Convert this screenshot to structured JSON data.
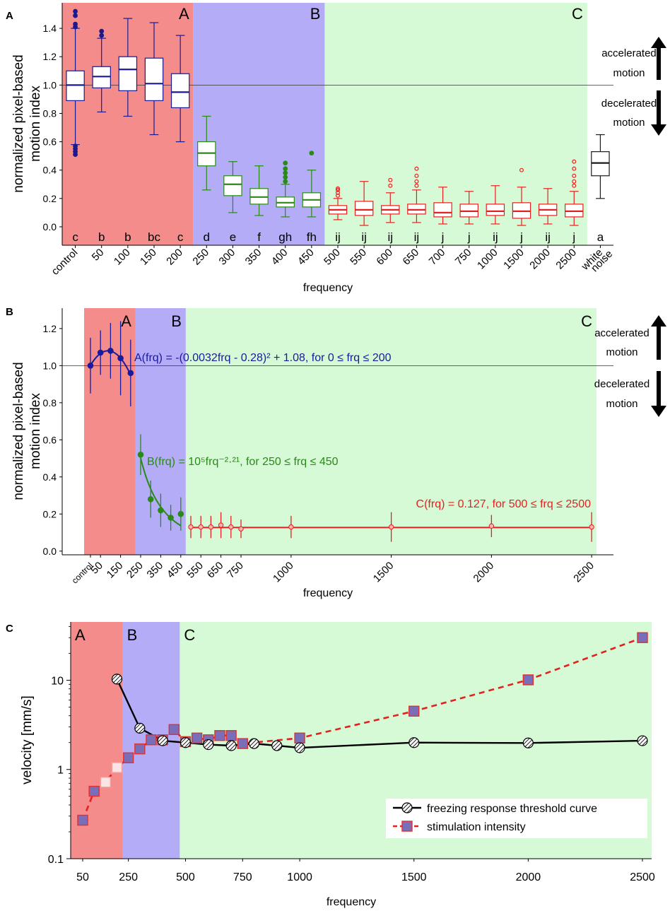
{
  "panels": [
    {
      "label": "A"
    },
    {
      "label": "B"
    },
    {
      "label": "C"
    }
  ],
  "chart_data": [
    {
      "type": "box",
      "panel": "A",
      "xlabel": "frequency",
      "ylabel_lines": [
        "normalized pixel-based",
        "motion index"
      ],
      "ylim": [
        -0.13,
        1.58
      ],
      "yticks": [
        "0.0",
        "0.2",
        "0.4",
        "0.6",
        "0.8",
        "1.0",
        "1.2",
        "1.4"
      ],
      "reference_line": 1.0,
      "regions": [
        {
          "name": "A",
          "color": "#f58c8c",
          "from_index": 0,
          "to_index": 4
        },
        {
          "name": "B",
          "color": "#b4acf7",
          "from_index": 5,
          "to_index": 9
        },
        {
          "name": "C",
          "color": "#d6fad6",
          "from_index": 10,
          "to_index": 19
        }
      ],
      "categories": [
        "control",
        "50",
        "100",
        "150",
        "200",
        "250",
        "300",
        "350",
        "400",
        "450",
        "500",
        "550",
        "600",
        "650",
        "700",
        "750",
        "1000",
        "1500",
        "2000",
        "2500",
        "white noise"
      ],
      "boxes": [
        {
          "q1": 0.89,
          "median": 1.0,
          "q3": 1.1,
          "lo": 0.58,
          "hi": 1.4,
          "outliers": [
            0.51,
            0.53,
            0.55,
            0.57,
            1.41,
            1.43,
            1.49,
            1.52
          ],
          "letters": "c",
          "color": "#1a1a8c"
        },
        {
          "q1": 0.98,
          "median": 1.06,
          "q3": 1.13,
          "lo": 0.81,
          "hi": 1.33,
          "outliers": [
            1.35,
            1.38
          ],
          "letters": "b",
          "color": "#1a1a8c"
        },
        {
          "q1": 0.96,
          "median": 1.11,
          "q3": 1.2,
          "lo": 0.78,
          "hi": 1.47,
          "outliers": [],
          "letters": "b",
          "color": "#1a1a8c"
        },
        {
          "q1": 0.89,
          "median": 1.01,
          "q3": 1.19,
          "lo": 0.65,
          "hi": 1.44,
          "outliers": [],
          "letters": "bc",
          "color": "#1a1a8c"
        },
        {
          "q1": 0.84,
          "median": 0.95,
          "q3": 1.08,
          "lo": 0.6,
          "hi": 1.35,
          "outliers": [],
          "letters": "c",
          "color": "#1a1a8c"
        },
        {
          "q1": 0.43,
          "median": 0.52,
          "q3": 0.6,
          "lo": 0.26,
          "hi": 0.78,
          "outliers": [],
          "letters": "d",
          "color": "#2a8a17"
        },
        {
          "q1": 0.22,
          "median": 0.3,
          "q3": 0.36,
          "lo": 0.1,
          "hi": 0.46,
          "outliers": [],
          "letters": "e",
          "color": "#2a8a17"
        },
        {
          "q1": 0.16,
          "median": 0.21,
          "q3": 0.27,
          "lo": 0.08,
          "hi": 0.43,
          "outliers": [],
          "letters": "f",
          "color": "#2a8a17"
        },
        {
          "q1": 0.14,
          "median": 0.17,
          "q3": 0.21,
          "lo": 0.07,
          "hi": 0.3,
          "outliers": [
            0.32,
            0.35,
            0.38,
            0.41,
            0.45
          ],
          "letters": "gh",
          "color": "#2a8a17"
        },
        {
          "q1": 0.14,
          "median": 0.19,
          "q3": 0.24,
          "lo": 0.07,
          "hi": 0.4,
          "outliers": [
            0.52
          ],
          "letters": "fh",
          "color": "#2a8a17"
        },
        {
          "q1": 0.09,
          "median": 0.12,
          "q3": 0.15,
          "lo": 0.05,
          "hi": 0.2,
          "outliers": [
            0.22,
            0.24,
            0.26,
            0.27
          ],
          "letters": "ij",
          "color": "#e52020"
        },
        {
          "q1": 0.08,
          "median": 0.12,
          "q3": 0.18,
          "lo": 0.01,
          "hi": 0.32,
          "outliers": [],
          "letters": "ij",
          "color": "#e52020"
        },
        {
          "q1": 0.09,
          "median": 0.12,
          "q3": 0.15,
          "lo": 0.03,
          "hi": 0.24,
          "outliers": [
            0.29,
            0.33
          ],
          "letters": "ij",
          "color": "#e52020"
        },
        {
          "q1": 0.09,
          "median": 0.12,
          "q3": 0.16,
          "lo": 0.03,
          "hi": 0.26,
          "outliers": [
            0.29,
            0.32,
            0.36,
            0.41
          ],
          "letters": "ij",
          "color": "#e52020"
        },
        {
          "q1": 0.07,
          "median": 0.1,
          "q3": 0.17,
          "lo": 0.02,
          "hi": 0.28,
          "outliers": [],
          "letters": "j",
          "color": "#e52020"
        },
        {
          "q1": 0.07,
          "median": 0.11,
          "q3": 0.16,
          "lo": 0.02,
          "hi": 0.25,
          "outliers": [],
          "letters": "j",
          "color": "#e52020"
        },
        {
          "q1": 0.08,
          "median": 0.11,
          "q3": 0.16,
          "lo": 0.02,
          "hi": 0.29,
          "outliers": [],
          "letters": "ij",
          "color": "#e52020"
        },
        {
          "q1": 0.06,
          "median": 0.11,
          "q3": 0.17,
          "lo": 0.01,
          "hi": 0.28,
          "outliers": [
            0.4
          ],
          "letters": "j",
          "color": "#e52020"
        },
        {
          "q1": 0.08,
          "median": 0.12,
          "q3": 0.16,
          "lo": 0.02,
          "hi": 0.27,
          "outliers": [],
          "letters": "ij",
          "color": "#e52020"
        },
        {
          "q1": 0.07,
          "median": 0.11,
          "q3": 0.16,
          "lo": 0.01,
          "hi": 0.25,
          "outliers": [
            0.29,
            0.32,
            0.36,
            0.41,
            0.46
          ],
          "letters": "j",
          "color": "#e52020"
        },
        {
          "q1": 0.36,
          "median": 0.45,
          "q3": 0.53,
          "lo": 0.2,
          "hi": 0.65,
          "outliers": [],
          "letters": "a",
          "color": "#1a1a1a"
        }
      ],
      "annotations": {
        "accelerated": [
          "accelerated",
          "motion"
        ],
        "decelerated": [
          "decelerated",
          "motion"
        ]
      }
    },
    {
      "type": "line",
      "panel": "B",
      "xlabel": "frequency",
      "ylabel_lines": [
        "normalized pixel-based",
        "motion index"
      ],
      "ylim": [
        -0.02,
        1.31
      ],
      "yticks": [
        "0.0",
        "0.2",
        "0.4",
        "0.6",
        "0.8",
        "1.0",
        "1.2"
      ],
      "reference_line": 1.0,
      "xticks": [
        {
          "label": "control",
          "x": 0
        },
        {
          "label": "50",
          "x": 50
        },
        {
          "label": "150",
          "x": 150
        },
        {
          "label": "250",
          "x": 250
        },
        {
          "label": "350",
          "x": 350
        },
        {
          "label": "450",
          "x": 450
        },
        {
          "label": "550",
          "x": 550
        },
        {
          "label": "650",
          "x": 650
        },
        {
          "label": "750",
          "x": 750
        },
        {
          "label": "1000",
          "x": 1000
        },
        {
          "label": "1500",
          "x": 1500
        },
        {
          "label": "2000",
          "x": 2000
        },
        {
          "label": "2500",
          "x": 2500
        }
      ],
      "regions": [
        {
          "name": "A",
          "color": "#f58c8c",
          "x0": -30,
          "x1": 225
        },
        {
          "name": "B",
          "color": "#b4acf7",
          "x0": 225,
          "x1": 475
        },
        {
          "name": "C",
          "color": "#d6fad6",
          "x0": 475,
          "x1": 2525
        }
      ],
      "series": [
        {
          "name": "A",
          "color": "#1a1a9c",
          "x": [
            0,
            50,
            100,
            150,
            200
          ],
          "y": [
            1.0,
            1.07,
            1.08,
            1.04,
            0.96
          ],
          "err": [
            0.15,
            0.12,
            0.15,
            0.2,
            0.18
          ],
          "formula": "A(frq) = -(0.0032frq - 0.28)² + 1.08, for 0 ≤ frq ≤ 200"
        },
        {
          "name": "B",
          "color": "#2a8a17",
          "x": [
            250,
            300,
            350,
            400,
            450
          ],
          "y": [
            0.52,
            0.28,
            0.22,
            0.18,
            0.2
          ],
          "err": [
            0.11,
            0.1,
            0.09,
            0.07,
            0.09
          ],
          "formula": "B(frq) = 10⁵frq⁻²·²¹, for 250 ≤ frq ≤ 450"
        },
        {
          "name": "C",
          "color": "#e52020",
          "x": [
            500,
            550,
            600,
            650,
            700,
            750,
            1000,
            1500,
            2000,
            2500
          ],
          "y": [
            0.13,
            0.13,
            0.13,
            0.14,
            0.13,
            0.12,
            0.13,
            0.13,
            0.135,
            0.13
          ],
          "err": [
            0.06,
            0.06,
            0.06,
            0.07,
            0.06,
            0.05,
            0.06,
            0.08,
            0.06,
            0.08
          ],
          "formula": "C(frq) = 0.127, for 500 ≤ frq ≤ 2500"
        }
      ],
      "annotations": {
        "accelerated": [
          "accelerated",
          "motion"
        ],
        "decelerated": [
          "decelerated",
          "motion"
        ]
      }
    },
    {
      "type": "line",
      "panel": "C",
      "xlabel": "frequency",
      "ylabel": "velocity [mm/s]",
      "yscale": "log",
      "ylim": [
        0.1,
        45
      ],
      "yticks": [
        {
          "label": "0.1",
          "v": 0.1
        },
        {
          "label": "1",
          "v": 1
        },
        {
          "label": "10",
          "v": 10
        }
      ],
      "xlim": [
        25,
        2530
      ],
      "xticks": [
        {
          "label": "50",
          "x": 50
        },
        {
          "label": "250",
          "x": 250
        },
        {
          "label": "500",
          "x": 500
        },
        {
          "label": "750",
          "x": 750
        },
        {
          "label": "1000",
          "x": 1000
        },
        {
          "label": "1500",
          "x": 1500
        },
        {
          "label": "2000",
          "x": 2000
        },
        {
          "label": "2500",
          "x": 2500
        }
      ],
      "regions": [
        {
          "name": "A",
          "color": "#f58c8c",
          "x0": 25,
          "x1": 225
        },
        {
          "name": "B",
          "color": "#b4acf7",
          "x0": 225,
          "x1": 475
        },
        {
          "name": "C",
          "color": "#d6fad6",
          "x0": 475,
          "x1": 2530
        }
      ],
      "series": [
        {
          "name": "freezing response threshold curve",
          "color": "#000000",
          "style": "solid",
          "marker": "hatched-circle",
          "x": [
            200,
            300,
            400,
            500,
            600,
            700,
            800,
            900,
            1000,
            1500,
            2000,
            2500
          ],
          "y": [
            10.3,
            2.9,
            2.1,
            2.0,
            1.9,
            1.85,
            1.95,
            1.85,
            1.75,
            2.0,
            1.98,
            2.1
          ]
        },
        {
          "name": "stimulation intensity",
          "color": "#e52020",
          "style": "dashed",
          "marker": "square",
          "x": [
            50,
            100,
            150,
            200,
            250,
            300,
            350,
            400,
            450,
            500,
            550,
            600,
            650,
            700,
            750,
            1000,
            1500,
            2000,
            2500
          ],
          "y": [
            0.27,
            0.57,
            0.72,
            1.05,
            1.35,
            1.7,
            2.15,
            2.15,
            2.8,
            2.05,
            2.25,
            2.15,
            2.4,
            2.4,
            1.95,
            2.25,
            4.5,
            10.1,
            30.0
          ],
          "faded_indices": [
            2,
            3
          ]
        }
      ]
    }
  ]
}
